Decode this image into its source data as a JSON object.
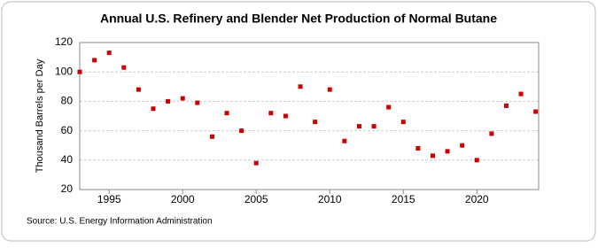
{
  "chart_data": {
    "type": "scatter",
    "title": "Annual U.S. Refinery and Blender Net Production of Normal Butane",
    "y_label": "Thousand Barrels per Day",
    "source": "Source: U.S. Energy Information Administration",
    "x": [
      1993,
      1994,
      1995,
      1996,
      1997,
      1998,
      1999,
      2000,
      2001,
      2002,
      2003,
      2004,
      2005,
      2006,
      2007,
      2008,
      2009,
      2010,
      2011,
      2012,
      2013,
      2014,
      2015,
      2016,
      2017,
      2018,
      2019,
      2020,
      2021,
      2022,
      2023,
      2024
    ],
    "series": [
      {
        "name": "Normal Butane",
        "color": "#cc0000",
        "values": [
          100,
          108,
          113,
          103,
          88,
          75,
          80,
          82,
          79,
          56,
          72,
          60,
          38,
          72,
          70,
          90,
          66,
          88,
          53,
          63,
          63,
          76,
          66,
          48,
          43,
          46,
          50,
          40,
          58,
          77,
          85,
          73
        ]
      }
    ],
    "xlim": [
      1993,
      2024.2
    ],
    "xticks": [
      1995,
      2000,
      2005,
      2010,
      2015,
      2020
    ],
    "ylim": [
      20,
      120
    ],
    "yticks": [
      20,
      40,
      60,
      80,
      100,
      120
    ],
    "grid": true
  }
}
